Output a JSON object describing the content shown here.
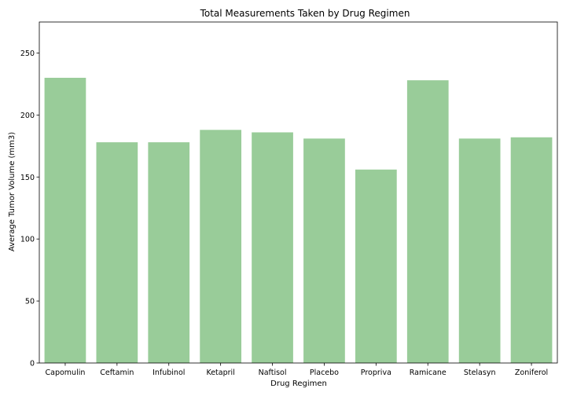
{
  "chart_data": {
    "type": "bar",
    "title": "Total Measurements Taken by Drug Regimen",
    "xlabel": "Drug Regimen",
    "ylabel": "Average Tumor Volume (mm3)",
    "categories": [
      "Capomulin",
      "Ceftamin",
      "Infubinol",
      "Ketapril",
      "Naftisol",
      "Placebo",
      "Propriva",
      "Ramicane",
      "Stelasyn",
      "Zoniferol"
    ],
    "values": [
      230,
      178,
      178,
      188,
      186,
      181,
      156,
      228,
      181,
      182
    ],
    "ylim": [
      0,
      275
    ],
    "yticks": [
      0,
      50,
      100,
      150,
      200,
      250
    ],
    "bar_color": "#99cc99",
    "grid": false,
    "legend": "none"
  }
}
